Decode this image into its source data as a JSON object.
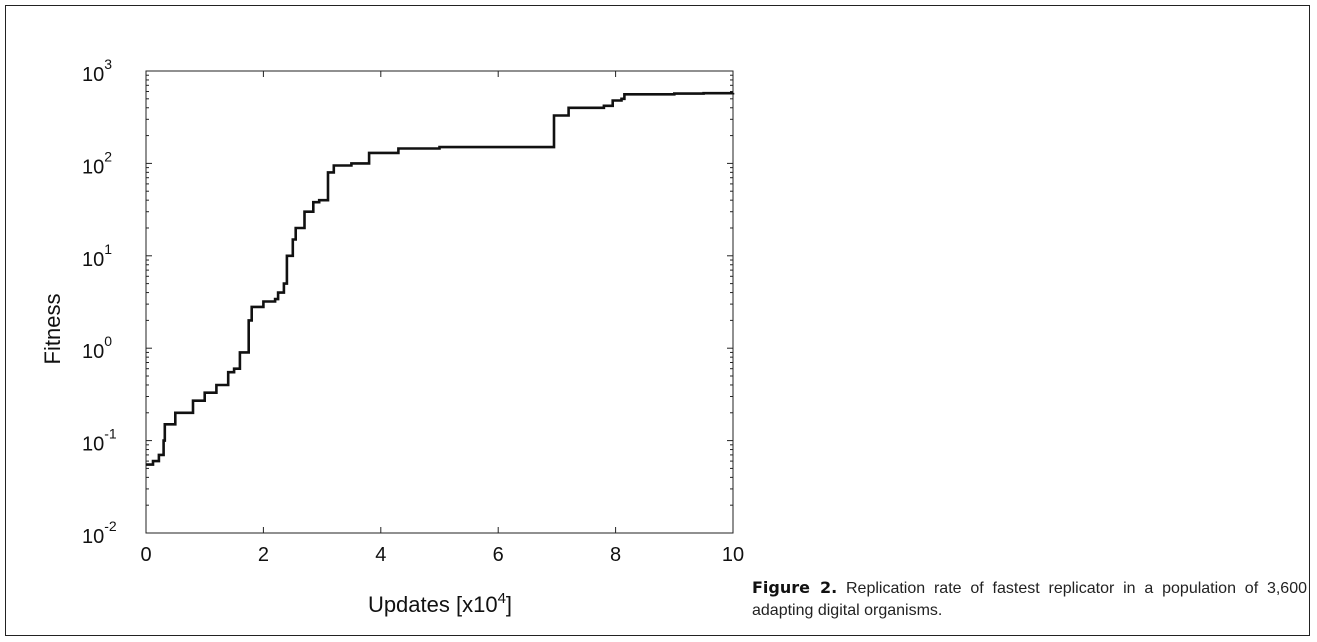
{
  "chart_data": {
    "type": "line",
    "title": "",
    "xlabel": "Updates [x10",
    "xlabel_sup": "4",
    "xlabel_end": "]",
    "ylabel": "Fitness",
    "xscale": "linear",
    "yscale": "log",
    "xlim": [
      0,
      10
    ],
    "ylim": [
      0.01,
      1000
    ],
    "xticks": [
      "0",
      "2",
      "4",
      "6",
      "8",
      "10"
    ],
    "yticks": [
      {
        "base": "10",
        "exp": "3"
      },
      {
        "base": "10",
        "exp": "2"
      },
      {
        "base": "10",
        "exp": "1"
      },
      {
        "base": "10",
        "exp": "0"
      },
      {
        "base": "10",
        "exp": "-1"
      },
      {
        "base": "10",
        "exp": "-2"
      }
    ],
    "grid": false,
    "legend": "none",
    "line_color": "#111111",
    "series": [
      {
        "x": [
          0,
          0.12,
          0.22,
          0.3,
          0.32,
          0.5,
          0.8,
          1.0,
          1.2,
          1.4,
          1.5,
          1.6,
          1.75,
          1.8,
          2.0,
          2.2,
          2.25,
          2.35,
          2.4,
          2.5,
          2.55,
          2.7,
          2.85,
          2.95,
          3.1,
          3.2,
          3.5,
          3.8,
          4.3,
          5.0,
          6.0,
          6.9,
          6.95,
          7.2,
          7.8,
          7.95,
          8.1,
          8.15,
          8.5,
          9.0,
          9.5,
          10.0
        ],
        "y": [
          0.055,
          0.06,
          0.07,
          0.1,
          0.15,
          0.2,
          0.27,
          0.33,
          0.4,
          0.55,
          0.6,
          0.9,
          2.0,
          2.8,
          3.2,
          3.4,
          4.0,
          5.0,
          10.0,
          15.0,
          20.0,
          30.0,
          38.0,
          40.0,
          80.0,
          95.0,
          100.0,
          130.0,
          145.0,
          150.0,
          150.0,
          150.0,
          330.0,
          400.0,
          420.0,
          480.0,
          500.0,
          560.0,
          560.0,
          570.0,
          575.0,
          580.0
        ]
      }
    ]
  },
  "caption": {
    "label": "Figure 2.",
    "text": "Replication rate of fastest replicator in a population of 3,600 adapting digital organisms."
  }
}
